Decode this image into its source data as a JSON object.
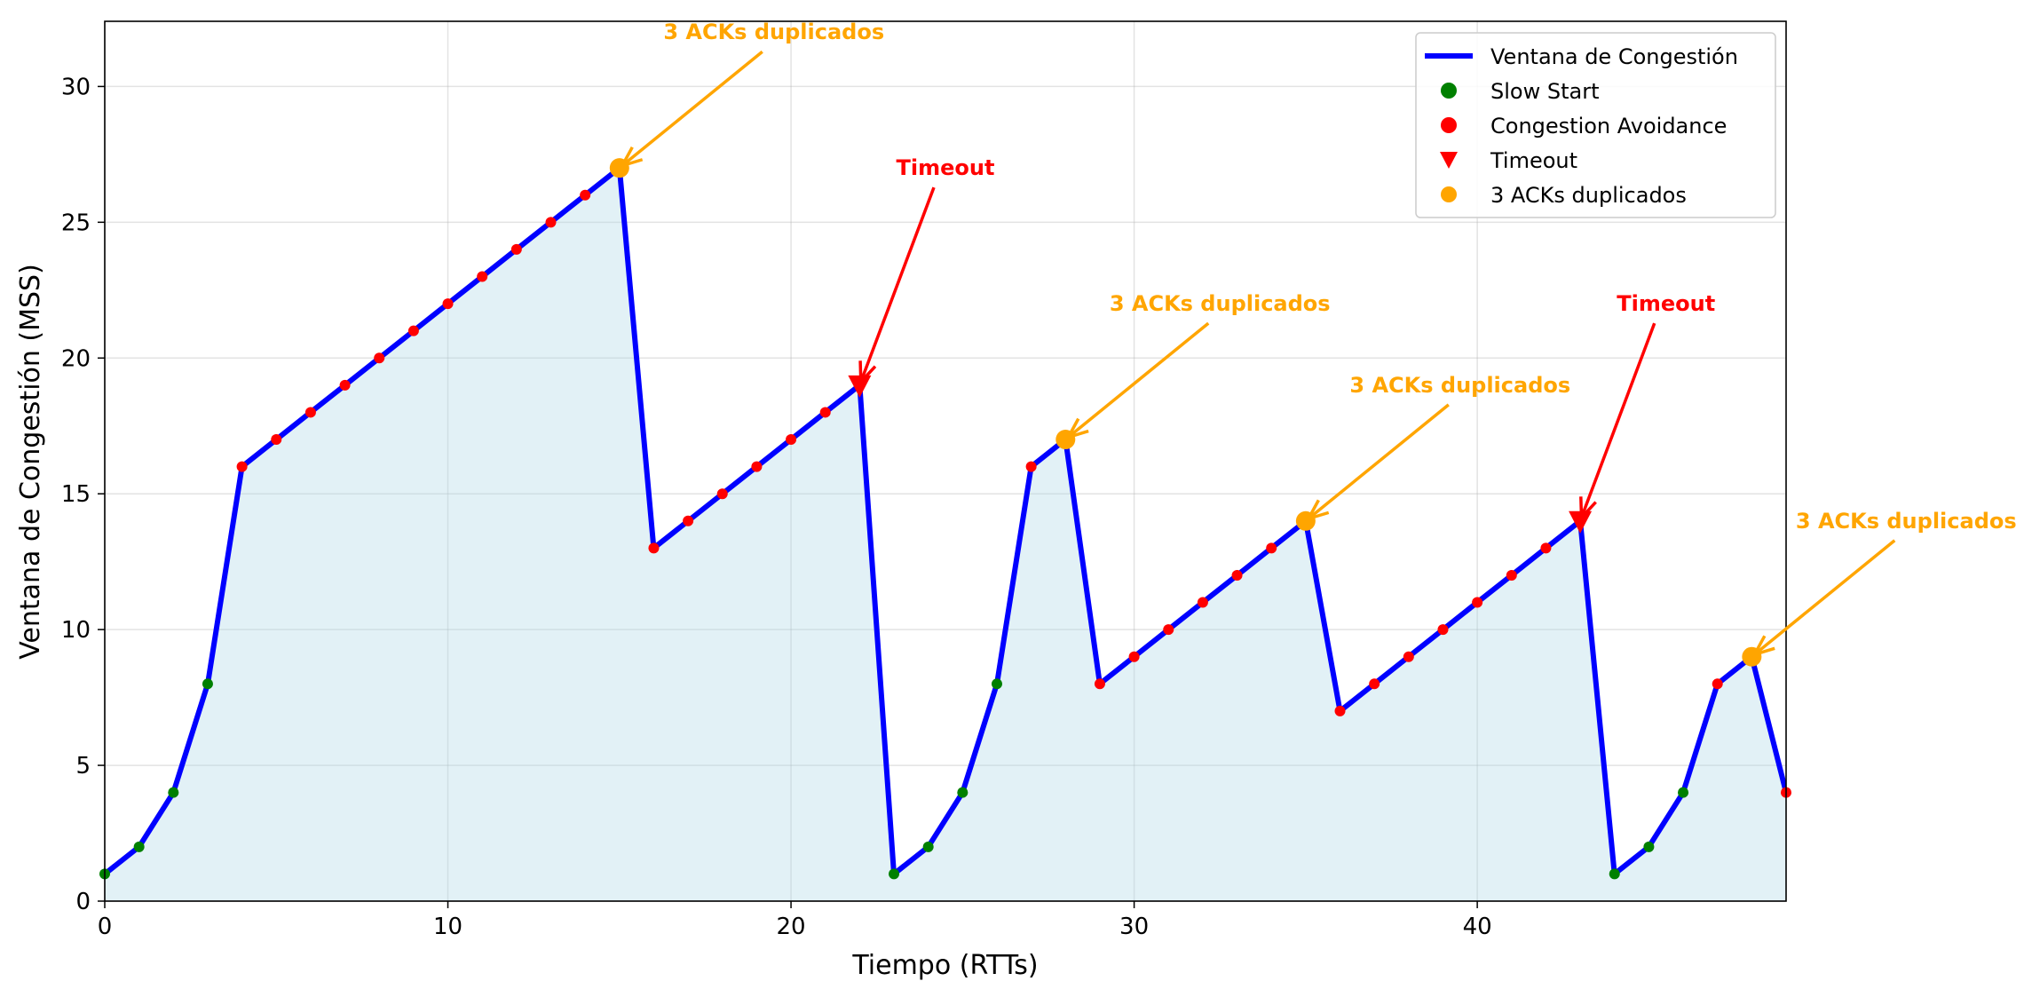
{
  "chart_data": {
    "type": "line",
    "xlabel": "Tiempo (RTTs)",
    "ylabel": "Ventana de Congestión (MSS)",
    "xlim": [
      0,
      49
    ],
    "ylim": [
      0,
      32.4
    ],
    "xticks": [
      0,
      10,
      20,
      30,
      40
    ],
    "yticks": [
      0,
      5,
      10,
      15,
      20,
      25,
      30
    ],
    "grid": true,
    "fill_under": true,
    "legend_position": "top-right",
    "colors": {
      "line": "#0000ff",
      "slow_start": "#008000",
      "congestion_avoidance": "#ff0000",
      "timeout": "#ff0000",
      "dup_acks": "#ffa500",
      "fill": "#add8e6"
    },
    "series": [
      {
        "name": "Ventana de Congestión",
        "x": [
          0,
          1,
          2,
          3,
          4,
          5,
          6,
          7,
          8,
          9,
          10,
          11,
          12,
          13,
          14,
          15,
          16,
          17,
          18,
          19,
          20,
          21,
          22,
          23,
          24,
          25,
          26,
          27,
          28,
          29,
          30,
          31,
          32,
          33,
          34,
          35,
          36,
          37,
          38,
          39,
          40,
          41,
          42,
          43,
          44,
          45,
          46,
          47,
          48,
          49
        ],
        "y": [
          1,
          2,
          4,
          8,
          16,
          17,
          18,
          19,
          20,
          21,
          22,
          23,
          24,
          25,
          26,
          27,
          13,
          14,
          15,
          16,
          17,
          18,
          19,
          1,
          2,
          4,
          8,
          16,
          17,
          8,
          9,
          10,
          11,
          12,
          13,
          14,
          7,
          8,
          9,
          10,
          11,
          12,
          13,
          14,
          1,
          2,
          4,
          8,
          9,
          4
        ]
      }
    ],
    "phases": {
      "slow_start_x": [
        0,
        1,
        2,
        3,
        23,
        24,
        25,
        26,
        44,
        45,
        46
      ],
      "congestion_avoidance_x": [
        4,
        5,
        6,
        7,
        8,
        9,
        10,
        11,
        12,
        13,
        14,
        16,
        17,
        18,
        19,
        20,
        21,
        27,
        29,
        30,
        31,
        32,
        33,
        34,
        36,
        37,
        38,
        39,
        40,
        41,
        42,
        47,
        49
      ],
      "timeout_x": [
        22,
        43
      ],
      "dup_acks_x": [
        15,
        28,
        35,
        48
      ]
    },
    "legend": [
      {
        "label": "Ventana de Congestión",
        "marker": "line",
        "color": "#0000ff"
      },
      {
        "label": "Slow Start",
        "marker": "circle",
        "color": "#008000"
      },
      {
        "label": "Congestion Avoidance",
        "marker": "circle",
        "color": "#ff0000"
      },
      {
        "label": "Timeout",
        "marker": "triangle-down",
        "color": "#ff0000"
      },
      {
        "label": "3 ACKs duplicados",
        "marker": "circle",
        "color": "#ffa500"
      }
    ],
    "annotations": [
      {
        "text": "3 ACKs duplicados",
        "x": 15,
        "y": 27,
        "text_x": 19.5,
        "text_y": 32,
        "color": "#ffa500"
      },
      {
        "text": "Timeout",
        "x": 22,
        "y": 19,
        "text_x": 24.5,
        "text_y": 27,
        "color": "#ff0000"
      },
      {
        "text": "3 ACKs duplicados",
        "x": 28,
        "y": 17,
        "text_x": 32.5,
        "text_y": 22,
        "color": "#ffa500"
      },
      {
        "text": "3 ACKs duplicados",
        "x": 35,
        "y": 14,
        "text_x": 39.5,
        "text_y": 19,
        "color": "#ffa500"
      },
      {
        "text": "Timeout",
        "x": 43,
        "y": 14,
        "text_x": 45.5,
        "text_y": 22,
        "color": "#ff0000"
      },
      {
        "text": "3 ACKs duplicados",
        "x": 48,
        "y": 9,
        "text_x": 52.5,
        "text_y": 14,
        "color": "#ffa500"
      }
    ]
  }
}
